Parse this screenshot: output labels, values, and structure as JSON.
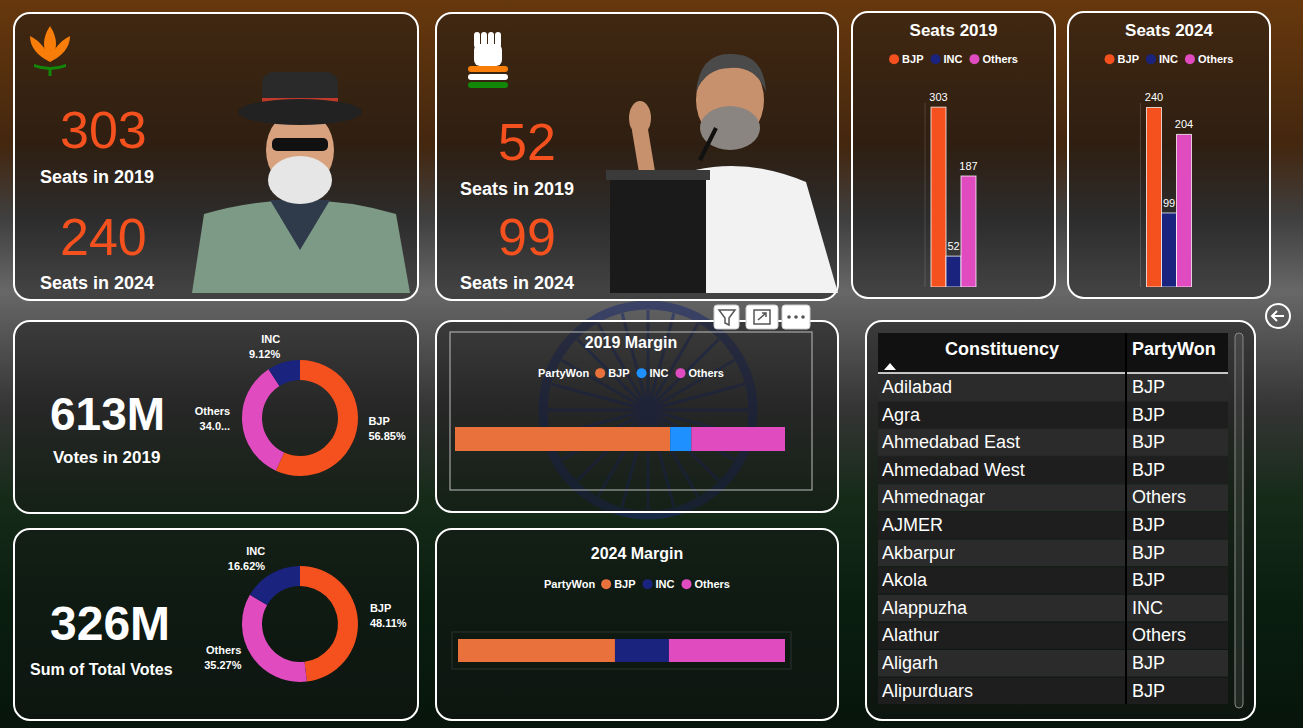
{
  "seat_cards": [
    {
      "stats": [
        {
          "number": 303,
          "caption": "Seats in 2019"
        },
        {
          "number": 240,
          "caption": "Seats in 2024"
        }
      ]
    },
    {
      "stats": [
        {
          "number": 52,
          "caption": "Seats in 2019"
        },
        {
          "number": 99,
          "caption": "Seats in 2024"
        }
      ]
    }
  ],
  "chart_data": [
    {
      "type": "bar",
      "title": "Seats 2019",
      "categories": [
        "BJP",
        "INC",
        "Others"
      ],
      "values": [
        303,
        52,
        187
      ],
      "colors": [
        "#f4511e",
        "#1a237e",
        "#e04cbf"
      ],
      "ylim": [
        0,
        310
      ],
      "data_labels": true,
      "tick_labels": false,
      "legend": "top"
    },
    {
      "type": "bar",
      "title": "Seats 2024",
      "categories": [
        "BJP",
        "INC",
        "Others"
      ],
      "values": [
        240,
        99,
        204
      ],
      "colors": [
        "#f4511e",
        "#1a237e",
        "#e04cbf"
      ],
      "ylim": [
        0,
        246
      ],
      "data_labels": true,
      "tick_labels": false,
      "legend": "top"
    },
    {
      "type": "donut",
      "categories": [
        "BJP",
        "Others",
        "INC"
      ],
      "values": [
        56.85,
        34.03,
        9.12
      ],
      "value_labels": [
        "56.85%",
        "34.0...",
        "9.12%"
      ],
      "colors": [
        "#f4511e",
        "#e04cbf",
        "#1a237e"
      ],
      "data_labels": true,
      "annotations": [
        "613M",
        "Votes in 2019"
      ]
    },
    {
      "type": "donut",
      "categories": [
        "BJP",
        "Others",
        "INC"
      ],
      "values": [
        48.11,
        35.27,
        16.62
      ],
      "value_labels": [
        "48.11%",
        "35.27%",
        "16.62%"
      ],
      "colors": [
        "#f4511e",
        "#e04cbf",
        "#1a237e"
      ],
      "data_labels": true,
      "annotations": [
        "326M",
        "Sum of Total Votes"
      ]
    },
    {
      "type": "bar",
      "title": "2019 Margin",
      "orientation": "horizontal",
      "stacked": true,
      "categories": [
        null
      ],
      "series": [
        {
          "name": "BJP",
          "color": "#e8713c",
          "values": [
            65.2
          ]
        },
        {
          "name": "INC",
          "color": "#1e90ff",
          "values": [
            6.4
          ]
        },
        {
          "name": "Others",
          "color": "#e04cbf",
          "values": [
            28.4
          ]
        }
      ],
      "xlim": [
        0,
        100
      ],
      "tick_labels": false,
      "legend": "top",
      "legend_title": "PartyWon"
    },
    {
      "type": "bar",
      "title": "2024 Margin",
      "orientation": "horizontal",
      "stacked": true,
      "categories": [
        null
      ],
      "series": [
        {
          "name": "BJP",
          "color": "#e8713c",
          "values": [
            48.0
          ]
        },
        {
          "name": "INC",
          "color": "#1a237e",
          "values": [
            16.5
          ]
        },
        {
          "name": "Others",
          "color": "#e04cbf",
          "values": [
            35.5
          ]
        }
      ],
      "xlim": [
        0,
        100
      ],
      "tick_labels": false,
      "legend": "top",
      "legend_title": "PartyWon"
    }
  ],
  "table": {
    "columns": [
      "Constituency",
      "PartyWon"
    ],
    "rows": [
      [
        "Adilabad",
        "BJP"
      ],
      [
        "Agra",
        "BJP"
      ],
      [
        "Ahmedabad East",
        "BJP"
      ],
      [
        "Ahmedabad West",
        "BJP"
      ],
      [
        "Ahmednagar",
        "Others"
      ],
      [
        "AJMER",
        "BJP"
      ],
      [
        "Akbarpur",
        "BJP"
      ],
      [
        "Akola",
        "BJP"
      ],
      [
        "Alappuzha",
        "INC"
      ],
      [
        "Alathur",
        "Others"
      ],
      [
        "Aligarh",
        "BJP"
      ],
      [
        "Alipurduars",
        "BJP"
      ]
    ]
  }
}
